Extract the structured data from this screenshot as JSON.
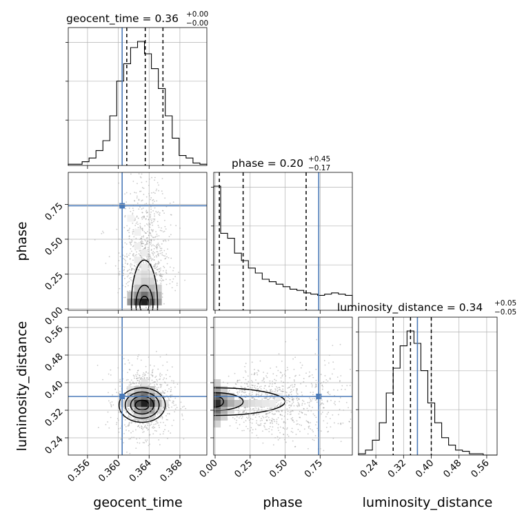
{
  "chart_data": {
    "type": "corner",
    "title": "",
    "parameters": [
      "geocent_time",
      "phase",
      "luminosity_distance"
    ],
    "panel_titles": [
      {
        "name": "geocent_time",
        "value": "0.36",
        "plus": "+0.00",
        "minus": "−0.00"
      },
      {
        "name": "phase",
        "value": "0.20",
        "plus": "+0.45",
        "minus": "−0.17"
      },
      {
        "name": "luminosity_distance",
        "value": "0.34",
        "plus": "+0.05",
        "minus": "−0.05"
      }
    ],
    "xlabels": [
      "geocent_time",
      "phase",
      "luminosity_distance"
    ],
    "ylabels": [
      "phase",
      "luminosity_distance"
    ],
    "ranges": {
      "geocent_time": [
        0.3535,
        0.3715
      ],
      "phase": [
        -0.01,
        0.98
      ],
      "luminosity_distance": [
        0.19,
        0.59
      ]
    },
    "ticks": {
      "geocent_time": [
        "0.356",
        "0.360",
        "0.364",
        "0.368"
      ],
      "phase": [
        "0.00",
        "0.25",
        "0.50",
        "0.75"
      ],
      "luminosity_distance": [
        "0.24",
        "0.32",
        "0.40",
        "0.48",
        "0.56"
      ]
    },
    "injection": {
      "geocent_time": 0.3605,
      "phase": 0.74,
      "luminosity_distance": 0.36
    },
    "quantiles": {
      "geocent_time": [
        0.3611,
        0.3635,
        0.3658
      ],
      "phase": [
        0.03,
        0.2,
        0.65
      ],
      "luminosity_distance": [
        0.29,
        0.34,
        0.4
      ]
    },
    "histograms": {
      "geocent_time": {
        "bin_edges": [
          0.3535,
          0.3544,
          0.3553,
          0.3562,
          0.3571,
          0.358,
          0.3589,
          0.3598,
          0.3607,
          0.3616,
          0.3625,
          0.3634,
          0.3643,
          0.3652,
          0.3661,
          0.367,
          0.3679,
          0.3688,
          0.3697,
          0.3706,
          0.3715
        ],
        "counts": [
          0.01,
          0.01,
          0.03,
          0.06,
          0.12,
          0.2,
          0.4,
          0.68,
          0.82,
          0.95,
          1.0,
          0.9,
          0.78,
          0.62,
          0.4,
          0.22,
          0.08,
          0.06,
          0.02,
          0.01
        ]
      },
      "phase": {
        "bin_edges": [
          -0.01,
          0.0395,
          0.089,
          0.1385,
          0.188,
          0.2375,
          0.287,
          0.3365,
          0.386,
          0.4355,
          0.485,
          0.5345,
          0.584,
          0.6335,
          0.683,
          0.7325,
          0.782,
          0.8315,
          0.881,
          0.9305,
          0.98
        ],
        "counts": [
          1.0,
          0.62,
          0.58,
          0.46,
          0.4,
          0.34,
          0.3,
          0.25,
          0.23,
          0.21,
          0.19,
          0.17,
          0.16,
          0.14,
          0.13,
          0.12,
          0.13,
          0.14,
          0.13,
          0.12
        ]
      },
      "luminosity_distance": {
        "bin_edges": [
          0.19,
          0.21,
          0.23,
          0.25,
          0.27,
          0.29,
          0.31,
          0.33,
          0.35,
          0.37,
          0.39,
          0.41,
          0.43,
          0.45,
          0.47,
          0.49,
          0.51,
          0.53,
          0.55,
          0.57,
          0.59
        ],
        "counts": [
          0.01,
          0.04,
          0.12,
          0.26,
          0.5,
          0.7,
          0.88,
          1.0,
          0.9,
          0.68,
          0.42,
          0.26,
          0.14,
          0.08,
          0.04,
          0.03,
          0.01,
          0.01,
          0,
          0
        ]
      }
    },
    "joint": [
      {
        "x": "geocent_time",
        "y": "phase",
        "density_cells": [
          [
            0.3625,
            0.05,
            0.75
          ],
          [
            0.3634,
            0.05,
            0.95
          ],
          [
            0.3643,
            0.05,
            0.7
          ],
          [
            0.3616,
            0.05,
            0.45
          ],
          [
            0.3652,
            0.05,
            0.4
          ],
          [
            0.3634,
            0.1,
            0.6
          ],
          [
            0.3625,
            0.1,
            0.45
          ],
          [
            0.3643,
            0.1,
            0.5
          ],
          [
            0.3652,
            0.1,
            0.3
          ],
          [
            0.3616,
            0.1,
            0.25
          ],
          [
            0.3634,
            0.15,
            0.35
          ],
          [
            0.3643,
            0.15,
            0.3
          ],
          [
            0.3625,
            0.15,
            0.25
          ],
          [
            0.3652,
            0.15,
            0.2
          ],
          [
            0.3634,
            0.2,
            0.2
          ],
          [
            0.3643,
            0.2,
            0.18
          ],
          [
            0.3625,
            0.2,
            0.12
          ],
          [
            0.3634,
            0.25,
            0.14
          ],
          [
            0.3625,
            0.25,
            0.1
          ],
          [
            0.3643,
            0.25,
            0.1
          ],
          [
            0.3634,
            0.3,
            0.1
          ],
          [
            0.3625,
            0.35,
            0.08
          ],
          [
            0.3634,
            0.4,
            0.08
          ],
          [
            0.3625,
            0.45,
            0.07
          ],
          [
            0.3625,
            0.55,
            0.06
          ],
          [
            0.3616,
            0.65,
            0.05
          ]
        ]
      },
      {
        "x": "geocent_time",
        "y": "luminosity_distance",
        "density_cells": [
          [
            0.3625,
            0.34,
            0.75
          ],
          [
            0.3634,
            0.34,
            0.95
          ],
          [
            0.3643,
            0.34,
            0.8
          ],
          [
            0.3634,
            0.36,
            0.6
          ],
          [
            0.3625,
            0.36,
            0.5
          ],
          [
            0.3643,
            0.36,
            0.45
          ],
          [
            0.3616,
            0.34,
            0.35
          ],
          [
            0.3652,
            0.34,
            0.35
          ],
          [
            0.3634,
            0.32,
            0.5
          ],
          [
            0.3625,
            0.32,
            0.4
          ],
          [
            0.3643,
            0.32,
            0.4
          ],
          [
            0.3634,
            0.38,
            0.3
          ],
          [
            0.3625,
            0.38,
            0.25
          ],
          [
            0.3643,
            0.38,
            0.25
          ],
          [
            0.3616,
            0.36,
            0.25
          ],
          [
            0.3652,
            0.36,
            0.2
          ],
          [
            0.3634,
            0.3,
            0.25
          ],
          [
            0.3625,
            0.3,
            0.2
          ],
          [
            0.3643,
            0.3,
            0.2
          ],
          [
            0.3607,
            0.34,
            0.15
          ],
          [
            0.3661,
            0.34,
            0.12
          ],
          [
            0.3634,
            0.4,
            0.12
          ],
          [
            0.3616,
            0.38,
            0.12
          ],
          [
            0.3652,
            0.32,
            0.15
          ]
        ]
      },
      {
        "x": "phase",
        "y": "luminosity_distance",
        "density_cells": [
          [
            0.015,
            0.34,
            0.9
          ],
          [
            0.015,
            0.36,
            0.7
          ],
          [
            0.015,
            0.32,
            0.6
          ],
          [
            0.064,
            0.34,
            0.55
          ],
          [
            0.064,
            0.36,
            0.4
          ],
          [
            0.064,
            0.32,
            0.35
          ],
          [
            0.015,
            0.38,
            0.4
          ],
          [
            0.015,
            0.3,
            0.35
          ],
          [
            0.113,
            0.34,
            0.35
          ],
          [
            0.113,
            0.36,
            0.25
          ],
          [
            0.163,
            0.34,
            0.25
          ],
          [
            0.212,
            0.34,
            0.18
          ],
          [
            0.262,
            0.34,
            0.14
          ],
          [
            0.311,
            0.34,
            0.12
          ],
          [
            0.064,
            0.38,
            0.2
          ],
          [
            0.064,
            0.3,
            0.2
          ],
          [
            0.015,
            0.4,
            0.2
          ],
          [
            0.015,
            0.28,
            0.18
          ],
          [
            0.36,
            0.34,
            0.1
          ],
          [
            0.41,
            0.34,
            0.08
          ],
          [
            0.46,
            0.36,
            0.07
          ],
          [
            0.113,
            0.32,
            0.15
          ]
        ]
      }
    ],
    "grid": true,
    "colors": {
      "hist": "#000000",
      "injection": "#4a7ab8",
      "grid": "#b0b0b0",
      "scatter": "#9a9a9a"
    }
  }
}
